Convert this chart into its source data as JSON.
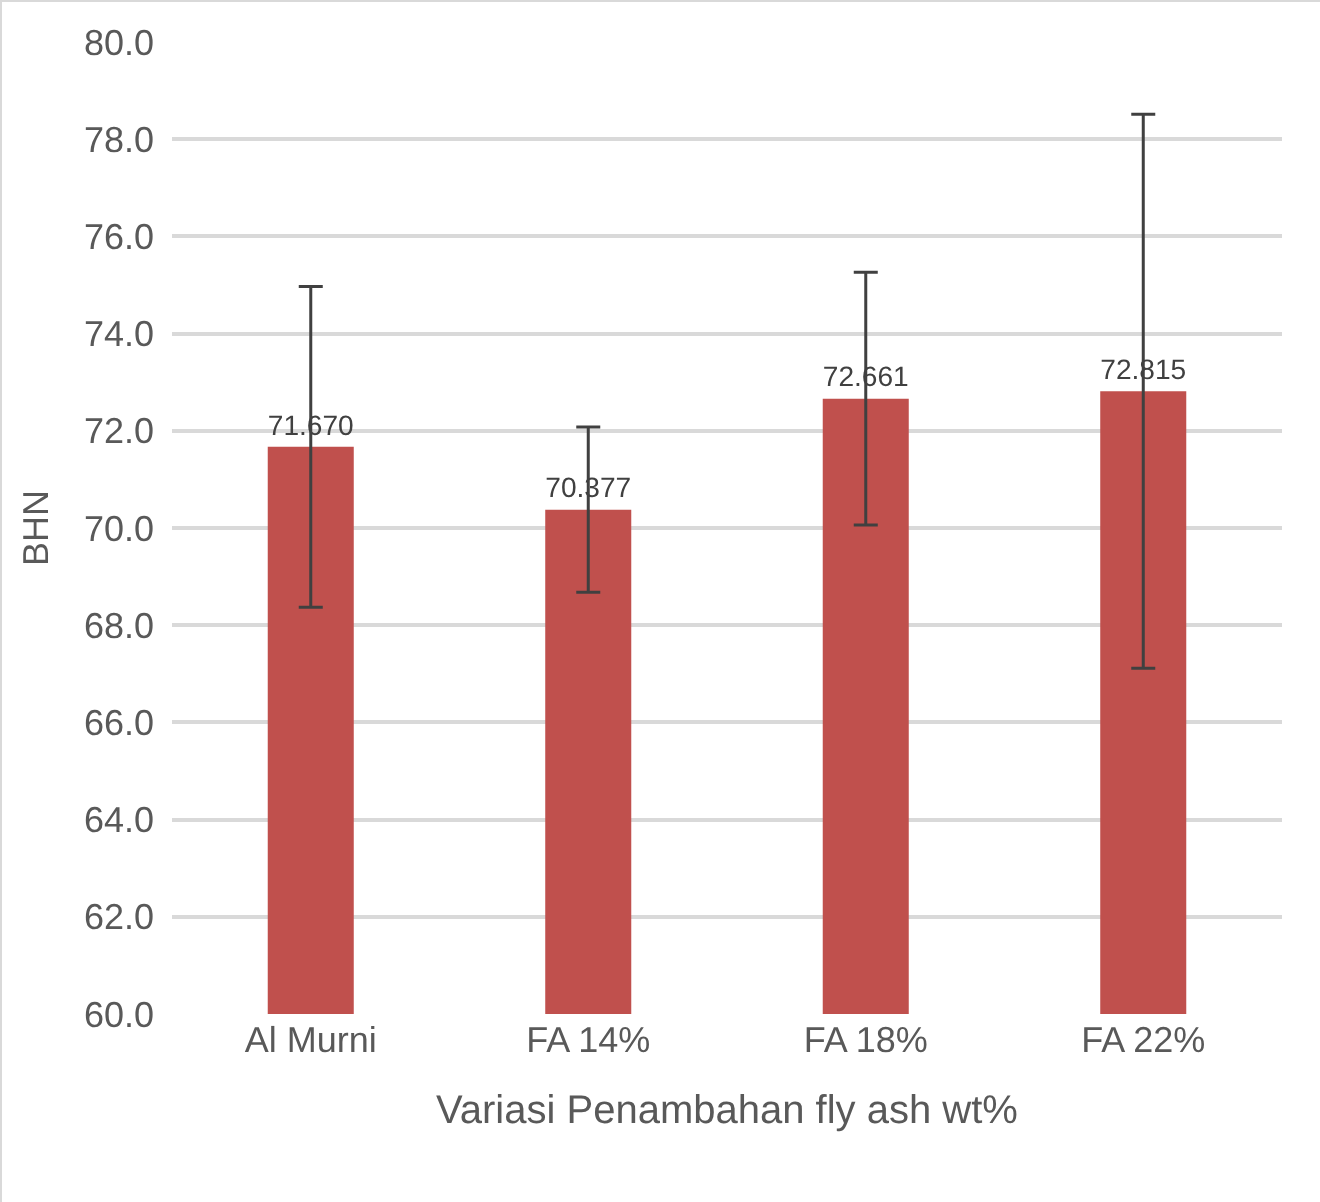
{
  "chart_data": {
    "type": "bar",
    "xlabel": "Variasi Penambahan fly ash wt%",
    "ylabel": "BHN",
    "categories": [
      "Al Murni",
      "FA 14%",
      "FA 18%",
      "FA 22%"
    ],
    "values": [
      71.67,
      70.377,
      72.661,
      72.815
    ],
    "value_labels": [
      "71.670",
      "70.377",
      "72.661",
      "72.815"
    ],
    "errors": [
      3.3,
      1.7,
      2.6,
      5.7
    ],
    "color": "#c0504d",
    "ylim": [
      60,
      80
    ],
    "yticks": [
      {
        "value": 60,
        "label": "60.0"
      },
      {
        "value": 62,
        "label": "62.0"
      },
      {
        "value": 64,
        "label": "64.0"
      },
      {
        "value": 66,
        "label": "66.0"
      },
      {
        "value": 68,
        "label": "68.0"
      },
      {
        "value": 70,
        "label": "70.0"
      },
      {
        "value": 72,
        "label": "72.0"
      },
      {
        "value": 74,
        "label": "74.0"
      },
      {
        "value": 76,
        "label": "76.0"
      },
      {
        "value": 78,
        "label": "78.0"
      },
      {
        "value": 80,
        "label": "80.0"
      }
    ],
    "grid": "y",
    "legend": false
  }
}
